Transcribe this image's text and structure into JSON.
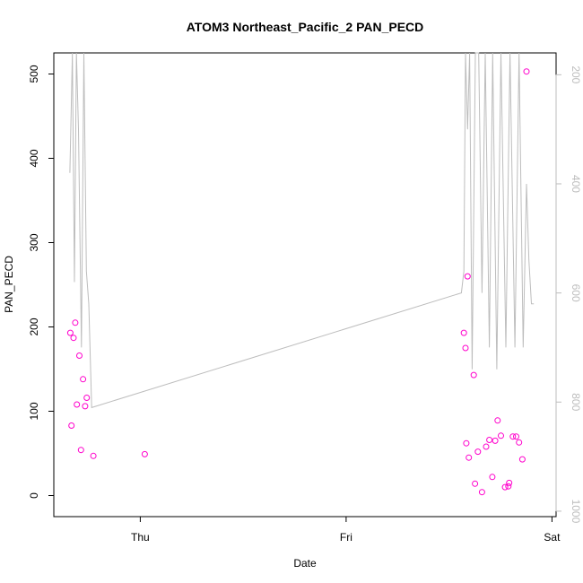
{
  "chart_data": {
    "type": "scatter",
    "title": "ATOM3 Northeast_Pacific_2 PAN_PECD",
    "xlabel": "Date",
    "ylabel": "PAN_PECD",
    "x_ticks": [
      "Thu",
      "Fri",
      "Sat"
    ],
    "xlim": [
      -0.21,
      1.01
    ],
    "ylim": [
      -25,
      525
    ],
    "y_ticks": [
      0,
      100,
      200,
      300,
      400,
      500
    ],
    "y2_ticks": [
      200,
      400,
      600,
      800,
      1000
    ],
    "y2lim": [
      1010,
      160
    ],
    "grid": false,
    "series": [
      {
        "color": "#ff00cc",
        "marker": "open-circle",
        "x": [
          -0.17,
          -0.167,
          -0.162,
          -0.158,
          -0.154,
          -0.148,
          -0.144,
          -0.139,
          -0.134,
          -0.13,
          -0.114,
          0.011,
          0.786,
          0.79,
          0.792,
          0.795,
          0.798,
          0.81,
          0.813,
          0.82,
          0.83,
          0.84,
          0.848,
          0.855,
          0.862,
          0.868,
          0.876,
          0.886,
          0.894,
          0.896,
          0.905,
          0.913,
          0.92,
          0.928,
          0.938
        ],
        "y": [
          193,
          83,
          187,
          205,
          108,
          166,
          54,
          138,
          106,
          116,
          47,
          49,
          193,
          175,
          62,
          260,
          45,
          143,
          14,
          52,
          4,
          58,
          66,
          22,
          65,
          89,
          71,
          10,
          11,
          15,
          70,
          70,
          63,
          43,
          503
        ]
      },
      {
        "color": "#bdbdbd",
        "marker": "line",
        "axis": "right",
        "x": [
          -0.171,
          -0.165,
          -0.16,
          -0.155,
          -0.15,
          -0.143,
          -0.137,
          -0.131,
          -0.125,
          -0.118,
          0.78,
          0.786,
          0.79,
          0.795,
          0.8,
          0.806,
          0.814,
          0.822,
          0.83,
          0.838,
          0.848,
          0.856,
          0.866,
          0.876,
          0.888,
          0.898,
          0.91,
          0.92,
          0.93,
          0.938,
          0.944,
          0.95,
          0.956
        ],
        "y": [
          380,
          140,
          580,
          140,
          300,
          700,
          150,
          560,
          620,
          810,
          600,
          560,
          160,
          300,
          140,
          740,
          150,
          160,
          600,
          140,
          700,
          150,
          740,
          160,
          700,
          150,
          700,
          150,
          700,
          400,
          540,
          620,
          620
        ]
      }
    ]
  }
}
